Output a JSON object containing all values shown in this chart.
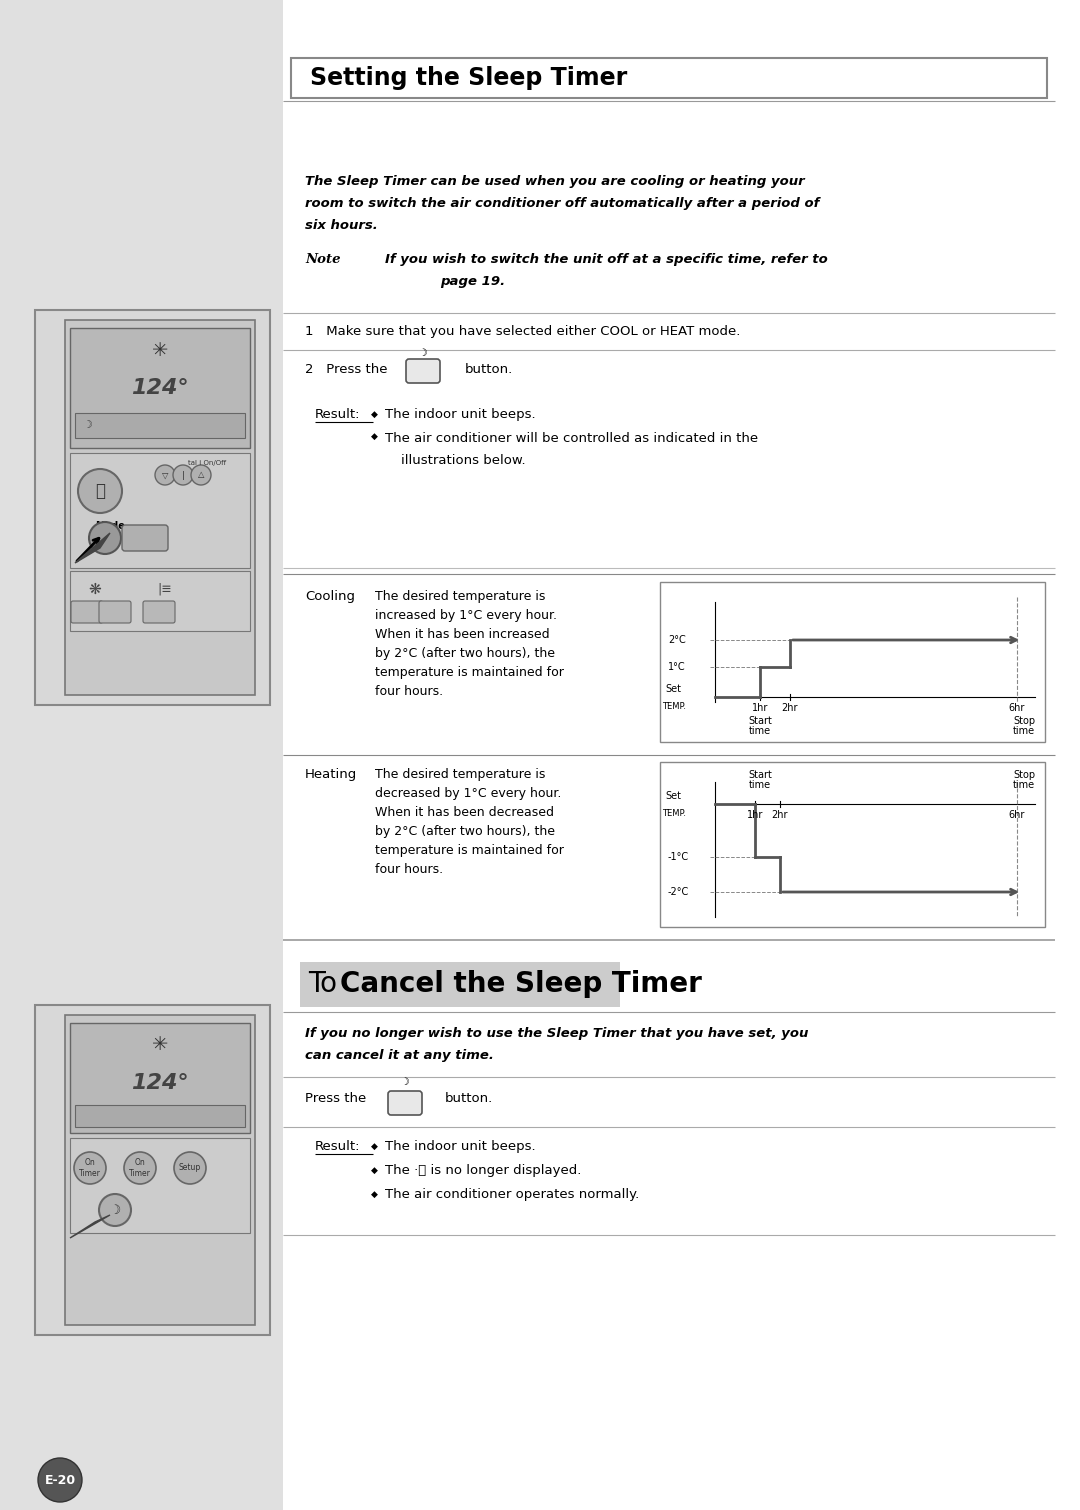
{
  "page_bg": "#e0e0e0",
  "content_bg": "#ffffff",
  "title": "Setting the Sleep Timer",
  "intro_text_line1": "The Sleep Timer can be used when you are cooling or heating your",
  "intro_text_line2": "room to switch the air conditioner off automatically after a period of",
  "intro_text_line3": "six hours.",
  "note_label": "Note",
  "note_text_line1": "If you wish to switch the unit off at a specific time, refer to",
  "note_text_line2": "page 19.",
  "step1": "1   Make sure that you have selected either COOL or HEAT mode.",
  "step2_prefix": "2   Press the",
  "step2_suffix": "button.",
  "result_label": "Result:",
  "result_bullet1": "The indoor unit beeps.",
  "result_bullet2a": "The air conditioner will be controlled as indicated in the",
  "result_bullet2b": "illustrations below.",
  "cooling_label": "Cooling",
  "cooling_desc_lines": [
    "The desired temperature is",
    "increased by 1°C every hour.",
    "When it has been increased",
    "by 2°C (after two hours), the",
    "temperature is maintained for",
    "four hours."
  ],
  "heating_label": "Heating",
  "heating_desc_lines": [
    "The desired temperature is",
    "decreased by 1°C every hour.",
    "When it has been decreased",
    "by 2°C (after two hours), the",
    "temperature is maintained for",
    "four hours."
  ],
  "section2_to": "To",
  "section2_rest": "Cancel the Sleep Timer",
  "cancel_intro_line1": "If you no longer wish to use the Sleep Timer that you have set, you",
  "cancel_intro_line2": "can cancel it at any time.",
  "cancel_press": "Press the",
  "cancel_button_suffix": "button.",
  "cancel_result_label": "Result:",
  "cancel_bullet1": "The indoor unit beeps.",
  "cancel_bullet2": "The ·ⓩ is no longer displayed.",
  "cancel_bullet3": "The air conditioner operates normally.",
  "footer": "E-20"
}
